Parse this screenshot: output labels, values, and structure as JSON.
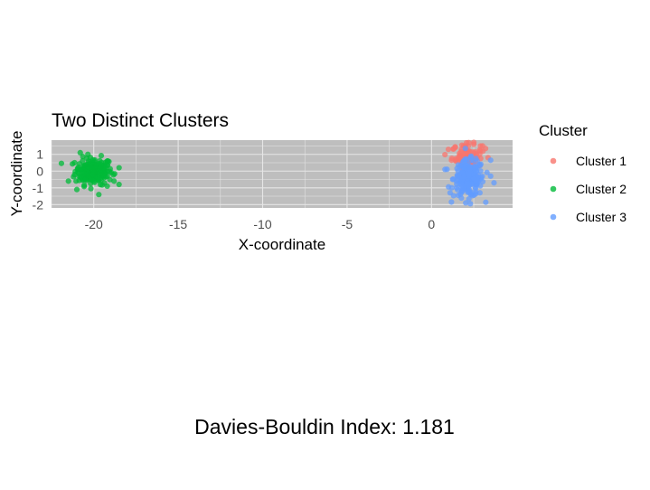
{
  "chart_data": {
    "type": "scatter",
    "title": "Two Distinct Clusters",
    "xlabel": "X-coordinate",
    "ylabel": "Y-coordinate",
    "xlim": [
      -22.5,
      4.8
    ],
    "ylim": [
      -2.2,
      1.85
    ],
    "x_ticks": [
      -20,
      -15,
      -10,
      -5,
      0
    ],
    "y_ticks": [
      -2,
      -1,
      0,
      1
    ],
    "grid": true,
    "panel_color": "#bebebe",
    "grid_color": "#e6e6e6",
    "legend": {
      "title": "Cluster",
      "position": "right"
    },
    "series": [
      {
        "name": "Cluster 1",
        "color": "#f8766d",
        "center": [
          2.1,
          0.9
        ],
        "spread": [
          0.45,
          0.35
        ],
        "n": 80,
        "points": [
          [
            2.2,
            1.7
          ],
          [
            1.8,
            1.55
          ],
          [
            2.5,
            1.6
          ],
          [
            3.2,
            1.35
          ],
          [
            1.4,
            1.45
          ],
          [
            1.0,
            1.3
          ],
          [
            2.9,
            1.5
          ],
          [
            2.0,
            1.5
          ]
        ]
      },
      {
        "name": "Cluster 2",
        "color": "#00ba38",
        "center": [
          -20.0,
          0.0
        ],
        "spread": [
          0.55,
          0.4
        ],
        "n": 200,
        "points": [
          [
            -18.5,
            0.2
          ],
          [
            -18.8,
            -0.6
          ],
          [
            -21.5,
            -0.6
          ],
          [
            -20.8,
            1.1
          ],
          [
            -19.7,
            -1.4
          ],
          [
            -21.0,
            -1.1
          ],
          [
            -19.2,
            -0.9
          ]
        ]
      },
      {
        "name": "Cluster 3",
        "color": "#619cff",
        "center": [
          2.2,
          -0.45
        ],
        "spread": [
          0.45,
          0.55
        ],
        "n": 200,
        "points": [
          [
            3.7,
            -0.7
          ],
          [
            3.5,
            -0.3
          ],
          [
            0.8,
            0.1
          ],
          [
            2.3,
            -1.95
          ],
          [
            1.1,
            -1.3
          ],
          [
            3.5,
            0.65
          ]
        ]
      }
    ]
  },
  "caption": "Davies-Bouldin Index: 1.181"
}
